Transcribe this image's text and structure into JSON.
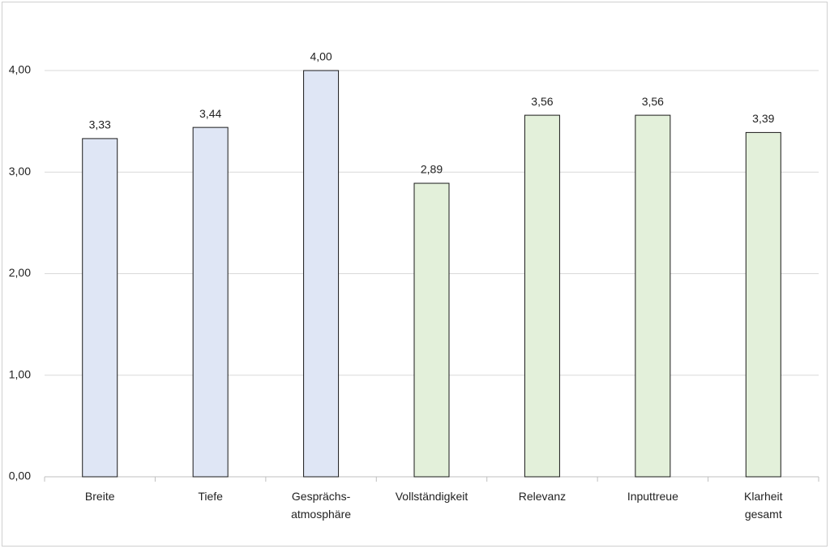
{
  "chart_data": {
    "type": "bar",
    "categories": [
      "Breite",
      "Tiefe",
      "Gesprächs-\natmosphäre",
      "Vollständigkeit",
      "Relevanz",
      "Inputtreue",
      "Klarheit\ngesamt"
    ],
    "values": [
      3.33,
      3.44,
      4.0,
      2.89,
      3.56,
      3.56,
      3.39
    ],
    "value_labels": [
      "3,33",
      "3,44",
      "4,00",
      "2,89",
      "3,56",
      "3,56",
      "3,39"
    ],
    "colors": [
      "#dfe6f5",
      "#dfe6f5",
      "#dfe6f5",
      "#e3f0da",
      "#e3f0da",
      "#e3f0da",
      "#e3f0da"
    ],
    "ylim": [
      0,
      4
    ],
    "yticks": [
      {
        "value": 0,
        "label": "0,00"
      },
      {
        "value": 1,
        "label": "1,00"
      },
      {
        "value": 2,
        "label": "2,00"
      },
      {
        "value": 3,
        "label": "3,00"
      },
      {
        "value": 4,
        "label": "4,00"
      }
    ],
    "grid": true
  }
}
